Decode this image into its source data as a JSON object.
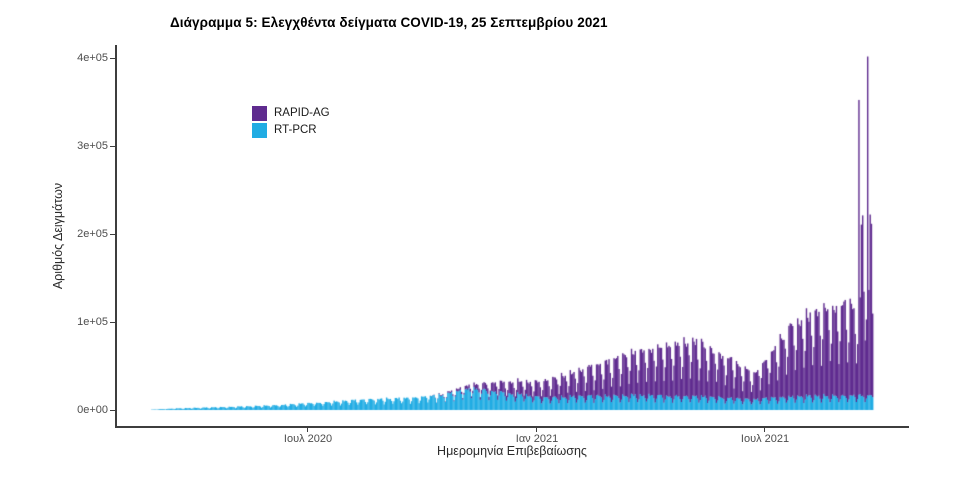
{
  "chart_data": {
    "type": "bar",
    "stacked": true,
    "title": "Διάγραμμα 5: Ελεγχθέντα δείγματα COVID-19, 25 Σεπτεμβρίου 2021",
    "xlabel": "Ημερομηνία Επιβεβαίωσης",
    "ylabel": "Αριθμός Δειγμάτων",
    "grid": false,
    "background": "#ffffff",
    "legend_position": "inside-top-left",
    "date_start": "2020-02-26",
    "date_end": "2021-09-25",
    "ylim": [
      0,
      400000
    ],
    "y_ticks": [
      {
        "label": "0e+00",
        "value": 0
      },
      {
        "label": "1e+05",
        "value": 100000
      },
      {
        "label": "2e+05",
        "value": 200000
      },
      {
        "label": "3e+05",
        "value": 300000
      },
      {
        "label": "4e+05",
        "value": 400000
      }
    ],
    "x_ticks": [
      {
        "label": "Ιουλ 2020",
        "date": "2020-07-01"
      },
      {
        "label": "Ιαν 2021",
        "date": "2021-01-01"
      },
      {
        "label": "Ιουλ 2021",
        "date": "2021-07-01"
      }
    ],
    "legend": [
      {
        "label": "RAPID-AG",
        "color": "#5F2B8F"
      },
      {
        "label": "RT-PCR",
        "color": "#21ACE3"
      }
    ],
    "series": [
      {
        "name": "RT-PCR",
        "color": "#21ACE3",
        "stack_order": "bottom",
        "weekday_factors": [
          0.5,
          0.7,
          1.0,
          0.95,
          0.93,
          0.95,
          0.78
        ],
        "control_points": [
          [
            "2020-02-26",
            400
          ],
          [
            "2020-03-15",
            1800
          ],
          [
            "2020-04-15",
            3200
          ],
          [
            "2020-05-15",
            4500
          ],
          [
            "2020-06-15",
            6500
          ],
          [
            "2020-07-15",
            9500
          ],
          [
            "2020-08-15",
            12500
          ],
          [
            "2020-09-15",
            14500
          ],
          [
            "2020-10-15",
            18000
          ],
          [
            "2020-11-10",
            26000
          ],
          [
            "2020-12-05",
            21000
          ],
          [
            "2021-01-05",
            15000
          ],
          [
            "2021-02-15",
            17000
          ],
          [
            "2021-04-01",
            18000
          ],
          [
            "2021-05-15",
            16000
          ],
          [
            "2021-06-20",
            13000
          ],
          [
            "2021-08-01",
            17000
          ],
          [
            "2021-09-25",
            18000
          ]
        ],
        "daily_overrides": {}
      },
      {
        "name": "RAPID-AG",
        "color": "#5F2B8F",
        "stack_order": "top",
        "weekday_factors": [
          0.42,
          0.62,
          1.0,
          0.97,
          0.93,
          0.95,
          0.72
        ],
        "control_points": [
          [
            "2020-02-26",
            0
          ],
          [
            "2020-10-05",
            0
          ],
          [
            "2020-10-20",
            1500
          ],
          [
            "2020-11-10",
            5000
          ],
          [
            "2020-12-01",
            12000
          ],
          [
            "2021-01-01",
            18000
          ],
          [
            "2021-02-01",
            30000
          ],
          [
            "2021-03-05",
            45000
          ],
          [
            "2021-04-10",
            58000
          ],
          [
            "2021-05-05",
            66000
          ],
          [
            "2021-06-01",
            48000
          ],
          [
            "2021-06-22",
            30000
          ],
          [
            "2021-07-10",
            62000
          ],
          [
            "2021-07-20",
            82000
          ],
          [
            "2021-08-10",
            100000
          ],
          [
            "2021-09-05",
            112000
          ],
          [
            "2021-09-13",
            100000
          ],
          [
            "2021-09-25",
            100000
          ]
        ],
        "daily_overrides": {
          "2021-09-14": 335000,
          "2021-09-15": 110000,
          "2021-09-16": 195000,
          "2021-09-17": 205000,
          "2021-09-18": 120000,
          "2021-09-19": 70000,
          "2021-09-20": 90000,
          "2021-09-21": 385000,
          "2021-09-22": 120000,
          "2021-09-23": 205000,
          "2021-09-24": 195000,
          "2021-09-25": 95000
        }
      }
    ]
  }
}
